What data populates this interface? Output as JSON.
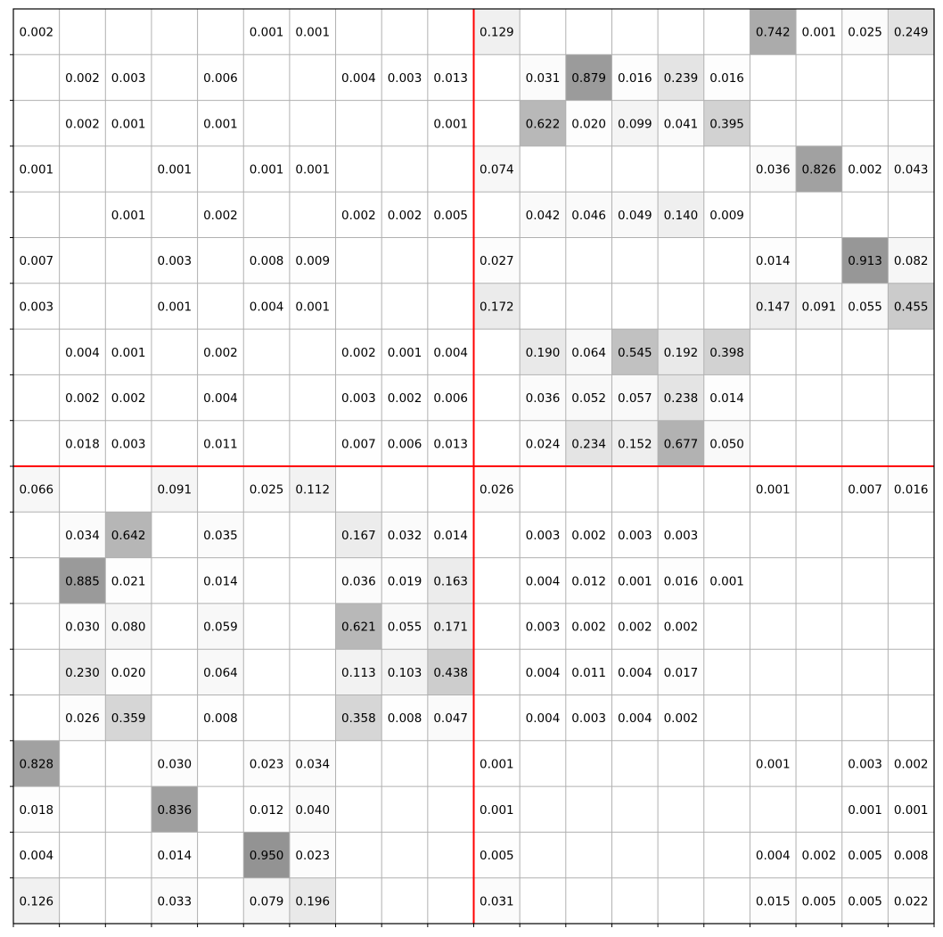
{
  "chart_data": {
    "type": "heatmap",
    "rows": 20,
    "cols": 20,
    "grid": true,
    "divider_after_col": 10,
    "divider_after_row": 10,
    "colors": {
      "grid": "#b0b0b0",
      "divider": "#ff0000",
      "cell_min": "#ffffff",
      "cell_max": "#939393",
      "text": "#000000",
      "frame": "#000000"
    },
    "values": [
      [
        0.002,
        null,
        null,
        null,
        null,
        0.001,
        0.001,
        null,
        null,
        null,
        0.129,
        null,
        null,
        null,
        null,
        null,
        0.742,
        0.001,
        0.025,
        0.249
      ],
      [
        null,
        0.002,
        0.003,
        null,
        0.006,
        null,
        null,
        0.004,
        0.003,
        0.013,
        null,
        0.031,
        0.879,
        0.016,
        0.239,
        0.016,
        null,
        null,
        null,
        null
      ],
      [
        null,
        0.002,
        0.001,
        null,
        0.001,
        null,
        null,
        null,
        null,
        0.001,
        null,
        0.622,
        0.02,
        0.099,
        0.041,
        0.395,
        null,
        null,
        null,
        null
      ],
      [
        0.001,
        null,
        null,
        0.001,
        null,
        0.001,
        0.001,
        null,
        null,
        null,
        0.074,
        null,
        null,
        null,
        null,
        null,
        0.036,
        0.826,
        0.002,
        0.043
      ],
      [
        null,
        null,
        0.001,
        null,
        0.002,
        null,
        null,
        0.002,
        0.002,
        0.005,
        null,
        0.042,
        0.046,
        0.049,
        0.14,
        0.009,
        null,
        null,
        null,
        null
      ],
      [
        0.007,
        null,
        null,
        0.003,
        null,
        0.008,
        0.009,
        null,
        null,
        null,
        0.027,
        null,
        null,
        null,
        null,
        null,
        0.014,
        null,
        0.913,
        0.082
      ],
      [
        0.003,
        null,
        null,
        0.001,
        null,
        0.004,
        0.001,
        null,
        null,
        null,
        0.172,
        null,
        null,
        null,
        null,
        null,
        0.147,
        0.091,
        0.055,
        0.455
      ],
      [
        null,
        0.004,
        0.001,
        null,
        0.002,
        null,
        null,
        0.002,
        0.001,
        0.004,
        null,
        0.19,
        0.064,
        0.545,
        0.192,
        0.398,
        null,
        null,
        null,
        null
      ],
      [
        null,
        0.002,
        0.002,
        null,
        0.004,
        null,
        null,
        0.003,
        0.002,
        0.006,
        null,
        0.036,
        0.052,
        0.057,
        0.238,
        0.014,
        null,
        null,
        null,
        null
      ],
      [
        null,
        0.018,
        0.003,
        null,
        0.011,
        null,
        null,
        0.007,
        0.006,
        0.013,
        null,
        0.024,
        0.234,
        0.152,
        0.677,
        0.05,
        null,
        null,
        null,
        null
      ],
      [
        0.066,
        null,
        null,
        0.091,
        null,
        0.025,
        0.112,
        null,
        null,
        null,
        0.026,
        null,
        null,
        null,
        null,
        null,
        0.001,
        null,
        0.007,
        0.016
      ],
      [
        null,
        0.034,
        0.642,
        null,
        0.035,
        null,
        null,
        0.167,
        0.032,
        0.014,
        null,
        0.003,
        0.002,
        0.003,
        0.003,
        null,
        null,
        null,
        null,
        null
      ],
      [
        null,
        0.885,
        0.021,
        null,
        0.014,
        null,
        null,
        0.036,
        0.019,
        0.163,
        null,
        0.004,
        0.012,
        0.001,
        0.016,
        0.001,
        null,
        null,
        null,
        null
      ],
      [
        null,
        0.03,
        0.08,
        null,
        0.059,
        null,
        null,
        0.621,
        0.055,
        0.171,
        null,
        0.003,
        0.002,
        0.002,
        0.002,
        null,
        null,
        null,
        null,
        null
      ],
      [
        null,
        0.23,
        0.02,
        null,
        0.064,
        null,
        null,
        0.113,
        0.103,
        0.438,
        null,
        0.004,
        0.011,
        0.004,
        0.017,
        null,
        null,
        null,
        null,
        null
      ],
      [
        null,
        0.026,
        0.359,
        null,
        0.008,
        null,
        null,
        0.358,
        0.008,
        0.047,
        null,
        0.004,
        0.003,
        0.004,
        0.002,
        null,
        null,
        null,
        null,
        null
      ],
      [
        0.828,
        null,
        null,
        0.03,
        null,
        0.023,
        0.034,
        null,
        null,
        null,
        0.001,
        null,
        null,
        null,
        null,
        null,
        0.001,
        null,
        0.003,
        0.002
      ],
      [
        0.018,
        null,
        null,
        0.836,
        null,
        0.012,
        0.04,
        null,
        null,
        null,
        0.001,
        null,
        null,
        null,
        null,
        null,
        null,
        null,
        0.001,
        0.001
      ],
      [
        0.004,
        null,
        null,
        0.014,
        null,
        0.95,
        0.023,
        null,
        null,
        null,
        0.005,
        null,
        null,
        null,
        null,
        null,
        0.004,
        0.002,
        0.005,
        0.008
      ],
      [
        0.126,
        null,
        null,
        0.033,
        null,
        0.079,
        0.196,
        null,
        null,
        null,
        0.031,
        null,
        null,
        null,
        null,
        null,
        0.015,
        0.005,
        0.005,
        0.022
      ]
    ]
  }
}
